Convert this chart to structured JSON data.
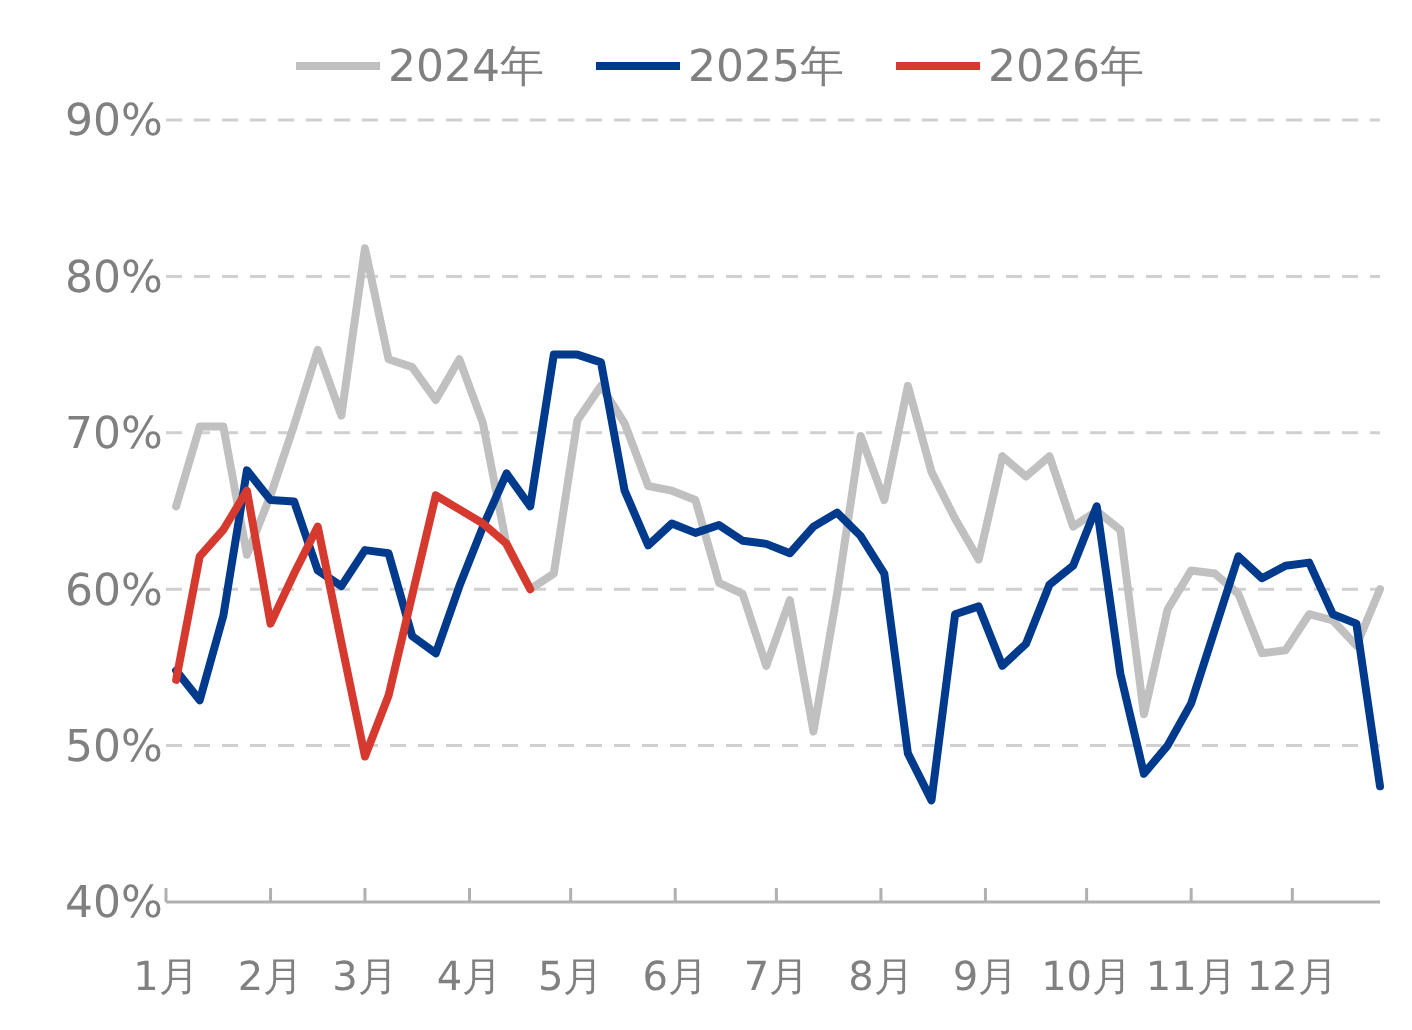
{
  "chart_data": {
    "type": "line",
    "legend": "top",
    "grid": "y",
    "line_style": "solid",
    "marker": "none",
    "x": [
      "--01-04",
      "--01-11",
      "--01-18",
      "--01-25",
      "--02-01",
      "--02-08",
      "--02-15",
      "--02-22",
      "--03-01",
      "--03-08",
      "--03-15",
      "--03-22",
      "--03-29",
      "--04-05",
      "--04-12",
      "--04-19",
      "--04-26",
      "--05-03",
      "--05-10",
      "--05-17",
      "--05-24",
      "--05-31",
      "--06-07",
      "--06-14",
      "--06-21",
      "--06-28",
      "--07-05",
      "--07-12",
      "--07-19",
      "--07-26",
      "--08-02",
      "--08-09",
      "--08-16",
      "--08-23",
      "--08-30",
      "--09-06",
      "--09-13",
      "--09-20",
      "--09-27",
      "--10-04",
      "--10-11",
      "--10-18",
      "--10-25",
      "--11-01",
      "--11-08",
      "--11-15",
      "--11-22",
      "--11-29",
      "--12-06",
      "--12-13",
      "--12-20",
      "--12-27"
    ],
    "xlim": [
      "--01-01",
      "--12-27"
    ],
    "xticks": [
      {
        "value": "--01-01",
        "label": "1月"
      },
      {
        "value": "--02-01",
        "label": "2月"
      },
      {
        "value": "--03-01",
        "label": "3月"
      },
      {
        "value": "--04-01",
        "label": "4月"
      },
      {
        "value": "--05-01",
        "label": "5月"
      },
      {
        "value": "--06-01",
        "label": "6月"
      },
      {
        "value": "--07-01",
        "label": "7月"
      },
      {
        "value": "--08-01",
        "label": "8月"
      },
      {
        "value": "--09-01",
        "label": "9月"
      },
      {
        "value": "--10-01",
        "label": "10月"
      },
      {
        "value": "--11-01",
        "label": "11月"
      },
      {
        "value": "--12-01",
        "label": "12月"
      }
    ],
    "ylim": [
      40,
      90
    ],
    "yticks": [
      {
        "value": 40,
        "label": "40%"
      },
      {
        "value": 50,
        "label": "50%"
      },
      {
        "value": 60,
        "label": "60%"
      },
      {
        "value": 70,
        "label": "70%"
      },
      {
        "value": 80,
        "label": "80%"
      },
      {
        "value": 90,
        "label": "90%"
      }
    ],
    "series": [
      {
        "name": "2024年",
        "color": "#c0c0c0",
        "values": [
          65.3,
          70.4,
          70.4,
          62.2,
          66,
          70.5,
          75.3,
          71.1,
          81.8,
          74.7,
          74.2,
          72.1,
          74.7,
          70.6,
          62.8,
          60,
          61,
          70.8,
          73,
          70.6,
          66.6,
          66.3,
          65.7,
          60.4,
          59.7,
          55.1,
          59.3,
          50.9,
          59.7,
          69.8,
          65.7,
          73,
          67.5,
          64.5,
          61.9,
          68.5,
          67.2,
          68.5,
          64,
          65,
          63.8,
          52,
          58.7,
          61.2,
          61,
          59.7,
          55.9,
          56.1,
          58.4,
          58,
          56.4,
          60
        ]
      },
      {
        "name": "2025年",
        "color": "#003a8c",
        "values": [
          54.8,
          52.9,
          58.3,
          67.6,
          65.7,
          65.6,
          61.2,
          60.2,
          62.5,
          62.3,
          57,
          55.9,
          60.2,
          64,
          67.4,
          65.3,
          75,
          75,
          74.5,
          66.3,
          62.8,
          64.2,
          63.6,
          64.1,
          63.1,
          62.9,
          62.3,
          64,
          64.9,
          63.4,
          61,
          49.5,
          46.5,
          58.4,
          58.9,
          55.1,
          56.5,
          60.3,
          61.5,
          65.3,
          54.6,
          48.2,
          50,
          52.7,
          57.4,
          62.1,
          60.7,
          61.5,
          61.7,
          58.4,
          57.8,
          47.4
        ]
      },
      {
        "name": "2026年",
        "color": "#d63a2f",
        "values": [
          54.2,
          62.1,
          63.8,
          66.3,
          57.8,
          61,
          64,
          56.6,
          49.3,
          53.2,
          59.6,
          66,
          65.1,
          64.2,
          62.9,
          60,
          null,
          null,
          null,
          null,
          null,
          null,
          null,
          null,
          null,
          null,
          null,
          null,
          null,
          null,
          null,
          null,
          null,
          null,
          null,
          null,
          null,
          null,
          null,
          null,
          null,
          null,
          null,
          null,
          null,
          null,
          null,
          null,
          null,
          null,
          null,
          null
        ]
      }
    ]
  }
}
